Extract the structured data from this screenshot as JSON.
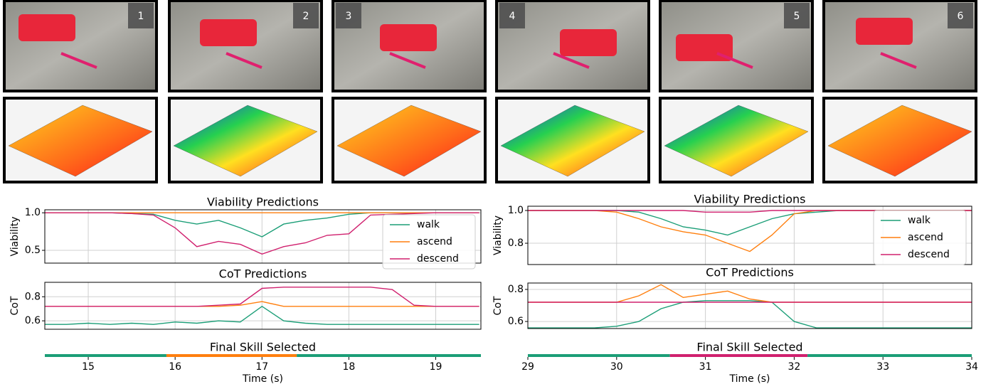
{
  "photos": [
    "1",
    "2",
    "3",
    "4",
    "5",
    "6"
  ],
  "chart_data": [
    {
      "type": "line",
      "title": "Viability Predictions",
      "ylabel": "Viability",
      "grid": true,
      "legend": "lower right",
      "show_xtick_labels": false,
      "xlim": [
        14.5,
        19.52
      ],
      "xticks": [
        15,
        16,
        17,
        18,
        19
      ],
      "ylim": [
        0.33,
        1.04
      ],
      "yticks": [
        0.5,
        {
          "value": 1,
          "label": "1.0"
        }
      ],
      "x": [
        14.5,
        14.75,
        15,
        15.25,
        15.5,
        15.75,
        16,
        16.25,
        16.5,
        16.75,
        17,
        17.25,
        17.5,
        17.75,
        18,
        18.25,
        18.5,
        18.75,
        19,
        19.25,
        19.5
      ],
      "series": [
        {
          "name": "walk",
          "color": "#1b9e77",
          "values": [
            1,
            1,
            1,
            1,
            0.99,
            0.98,
            0.9,
            0.85,
            0.9,
            0.8,
            0.68,
            0.85,
            0.9,
            0.93,
            0.98,
            1,
            1,
            1,
            1,
            1,
            1
          ]
        },
        {
          "name": "ascend",
          "color": "#ff7f0e",
          "values": [
            1,
            1,
            1,
            1,
            1,
            1,
            1,
            1,
            1,
            1,
            1,
            1,
            1,
            1,
            1,
            1,
            1,
            1,
            1,
            1,
            1
          ]
        },
        {
          "name": "descend",
          "color": "#d0206e",
          "values": [
            1,
            1,
            1,
            1,
            0.99,
            0.97,
            0.8,
            0.55,
            0.62,
            0.58,
            0.45,
            0.55,
            0.6,
            0.7,
            0.72,
            0.97,
            0.98,
            0.99,
            1,
            1,
            1
          ]
        }
      ]
    },
    {
      "type": "line",
      "title": "CoT Predictions",
      "ylabel": "CoT",
      "grid": true,
      "show_xtick_labels": false,
      "xlim": [
        14.5,
        19.52
      ],
      "xticks": [
        15,
        16,
        17,
        18,
        19
      ],
      "ylim": [
        0.53,
        0.92
      ],
      "yticks": [
        0.6,
        0.8
      ],
      "x": [
        14.5,
        14.75,
        15,
        15.25,
        15.5,
        15.75,
        16,
        16.25,
        16.5,
        16.75,
        17,
        17.25,
        17.5,
        17.75,
        18,
        18.25,
        18.5,
        18.75,
        19,
        19.25,
        19.5
      ],
      "series": [
        {
          "name": "walk",
          "color": "#1b9e77",
          "values": [
            0.57,
            0.57,
            0.58,
            0.57,
            0.58,
            0.57,
            0.59,
            0.58,
            0.6,
            0.59,
            0.72,
            0.6,
            0.58,
            0.57,
            0.57,
            0.57,
            0.57,
            0.57,
            0.57,
            0.57,
            0.57
          ]
        },
        {
          "name": "ascend",
          "color": "#ff7f0e",
          "values": [
            0.72,
            0.72,
            0.72,
            0.72,
            0.72,
            0.72,
            0.72,
            0.72,
            0.72,
            0.73,
            0.76,
            0.72,
            0.72,
            0.72,
            0.72,
            0.72,
            0.72,
            0.72,
            0.72,
            0.72,
            0.72
          ]
        },
        {
          "name": "descend",
          "color": "#d0206e",
          "values": [
            0.72,
            0.72,
            0.72,
            0.72,
            0.72,
            0.72,
            0.72,
            0.72,
            0.73,
            0.74,
            0.87,
            0.88,
            0.88,
            0.88,
            0.88,
            0.88,
            0.86,
            0.73,
            0.72,
            0.72,
            0.72
          ]
        }
      ]
    },
    {
      "type": "timeline",
      "title": "Final Skill Selected",
      "xlabel": "Time (s)",
      "xlim": [
        14.5,
        19.52
      ],
      "xticks": [
        15,
        16,
        17,
        18,
        19
      ],
      "segments": [
        {
          "start": 14.5,
          "end": 15.9,
          "color": "#1b9e77"
        },
        {
          "start": 15.9,
          "end": 17.4,
          "color": "#ff7f0e"
        },
        {
          "start": 17.4,
          "end": 19.52,
          "color": "#1b9e77"
        }
      ]
    },
    {
      "type": "line",
      "title": "Viability Predictions",
      "ylabel": "Viability",
      "grid": true,
      "legend": "center right",
      "show_xtick_labels": false,
      "xlim": [
        29,
        34
      ],
      "xticks": [
        29,
        30,
        31,
        32,
        33,
        34
      ],
      "ylim": [
        0.67,
        1.026
      ],
      "yticks": [
        0.8,
        {
          "value": 1,
          "label": "1.0"
        }
      ],
      "x": [
        29,
        29.25,
        29.5,
        29.75,
        30,
        30.25,
        30.5,
        30.75,
        31,
        31.25,
        31.5,
        31.75,
        32,
        32.25,
        32.5,
        32.75,
        33,
        33.25,
        33.5,
        33.75,
        34
      ],
      "series": [
        {
          "name": "walk",
          "color": "#1b9e77",
          "values": [
            1,
            1,
            1,
            1,
            1,
            0.99,
            0.95,
            0.9,
            0.88,
            0.85,
            0.9,
            0.95,
            0.98,
            0.99,
            1,
            1,
            1,
            1,
            1,
            1,
            1
          ]
        },
        {
          "name": "ascend",
          "color": "#ff7f0e",
          "values": [
            1,
            1,
            1,
            1,
            0.99,
            0.95,
            0.9,
            0.87,
            0.85,
            0.8,
            0.75,
            0.85,
            0.98,
            1,
            1,
            1,
            1,
            1,
            1,
            1,
            1
          ]
        },
        {
          "name": "descend",
          "color": "#d0206e",
          "values": [
            1,
            1,
            1,
            1,
            1,
            1,
            1,
            1,
            0.99,
            0.99,
            0.99,
            1,
            1,
            1,
            1,
            1,
            1,
            1,
            1,
            1,
            1
          ]
        }
      ]
    },
    {
      "type": "line",
      "title": "CoT Predictions",
      "ylabel": "CoT",
      "grid": true,
      "show_xtick_labels": false,
      "xlim": [
        29,
        34
      ],
      "xticks": [
        29,
        30,
        31,
        32,
        33,
        34
      ],
      "ylim": [
        0.556,
        0.84
      ],
      "yticks": [
        0.6,
        0.8
      ],
      "x": [
        29,
        29.25,
        29.5,
        29.75,
        30,
        30.25,
        30.5,
        30.75,
        31,
        31.25,
        31.5,
        31.75,
        32,
        32.25,
        32.5,
        32.75,
        33,
        33.25,
        33.5,
        33.75,
        34
      ],
      "series": [
        {
          "name": "walk",
          "color": "#1b9e77",
          "values": [
            0.56,
            0.56,
            0.56,
            0.56,
            0.57,
            0.6,
            0.68,
            0.72,
            0.73,
            0.73,
            0.73,
            0.72,
            0.6,
            0.56,
            0.56,
            0.56,
            0.56,
            0.56,
            0.56,
            0.56,
            0.56
          ]
        },
        {
          "name": "ascend",
          "color": "#ff7f0e",
          "values": [
            0.72,
            0.72,
            0.72,
            0.72,
            0.72,
            0.76,
            0.83,
            0.75,
            0.77,
            0.79,
            0.74,
            0.72,
            0.72,
            0.72,
            0.72,
            0.72,
            0.72,
            0.72,
            0.72,
            0.72,
            0.72
          ]
        },
        {
          "name": "descend",
          "color": "#d0206e",
          "values": [
            0.72,
            0.72,
            0.72,
            0.72,
            0.72,
            0.72,
            0.72,
            0.72,
            0.72,
            0.72,
            0.72,
            0.72,
            0.72,
            0.72,
            0.72,
            0.72,
            0.72,
            0.72,
            0.72,
            0.72,
            0.72
          ]
        }
      ]
    },
    {
      "type": "timeline",
      "title": "Final Skill Selected",
      "xlabel": "Time (s)",
      "xlim": [
        29,
        34
      ],
      "xticks": [
        29,
        30,
        31,
        32,
        33,
        34
      ],
      "segments": [
        {
          "start": 29,
          "end": 30.6,
          "color": "#1b9e77"
        },
        {
          "start": 30.6,
          "end": 32.15,
          "color": "#d0206e"
        },
        {
          "start": 32.15,
          "end": 34,
          "color": "#1b9e77"
        }
      ]
    }
  ]
}
